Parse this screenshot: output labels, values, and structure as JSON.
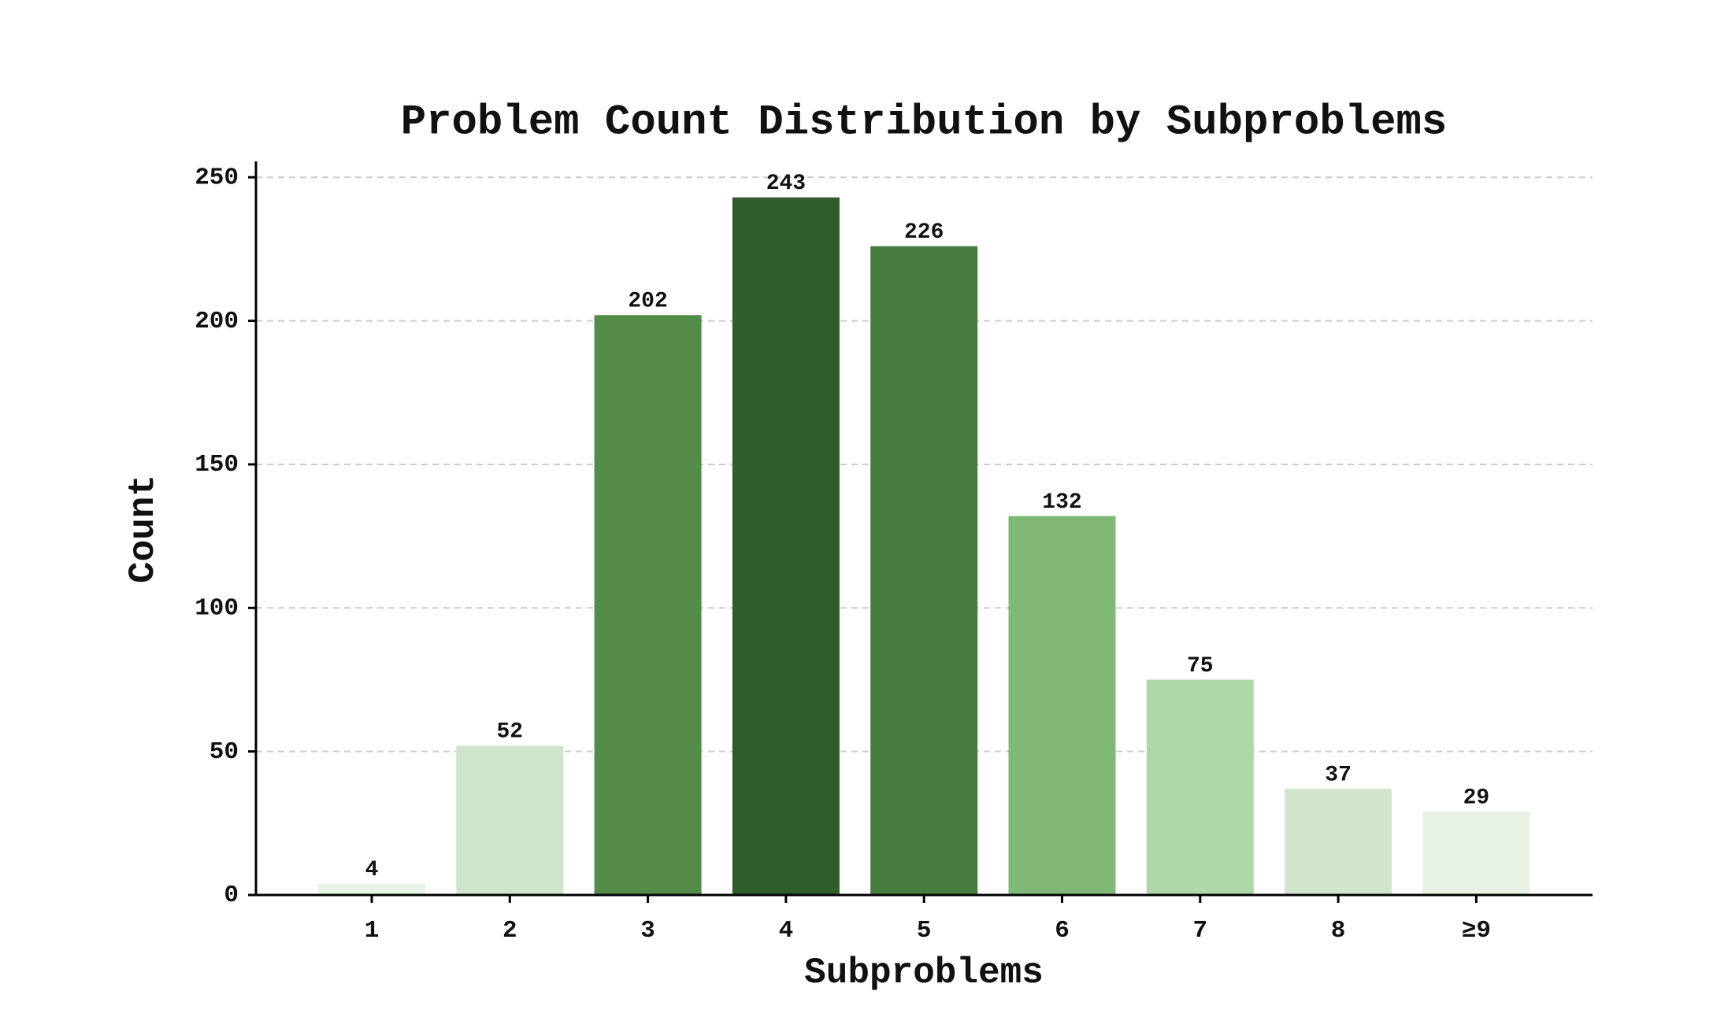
{
  "chart_data": {
    "type": "bar",
    "title": "Problem Count Distribution by Subproblems",
    "x_label": "Subproblems",
    "y_label": "Count",
    "categories": [
      "1",
      "2",
      "3",
      "4",
      "5",
      "6",
      "7",
      "8",
      "≥9"
    ],
    "values": [
      4,
      52,
      202,
      243,
      226,
      132,
      75,
      37,
      29
    ],
    "colors": [
      "#e8f4e5",
      "#cfe5cb",
      "#528c48",
      "#2f5e2a",
      "#467d3d",
      "#7fb975",
      "#b0d7a9",
      "#d1e5cd",
      "#e7f2e4"
    ],
    "ylim": [
      0,
      255
    ],
    "yticks": [
      0,
      50,
      100,
      150,
      200,
      250
    ],
    "grid": true
  }
}
